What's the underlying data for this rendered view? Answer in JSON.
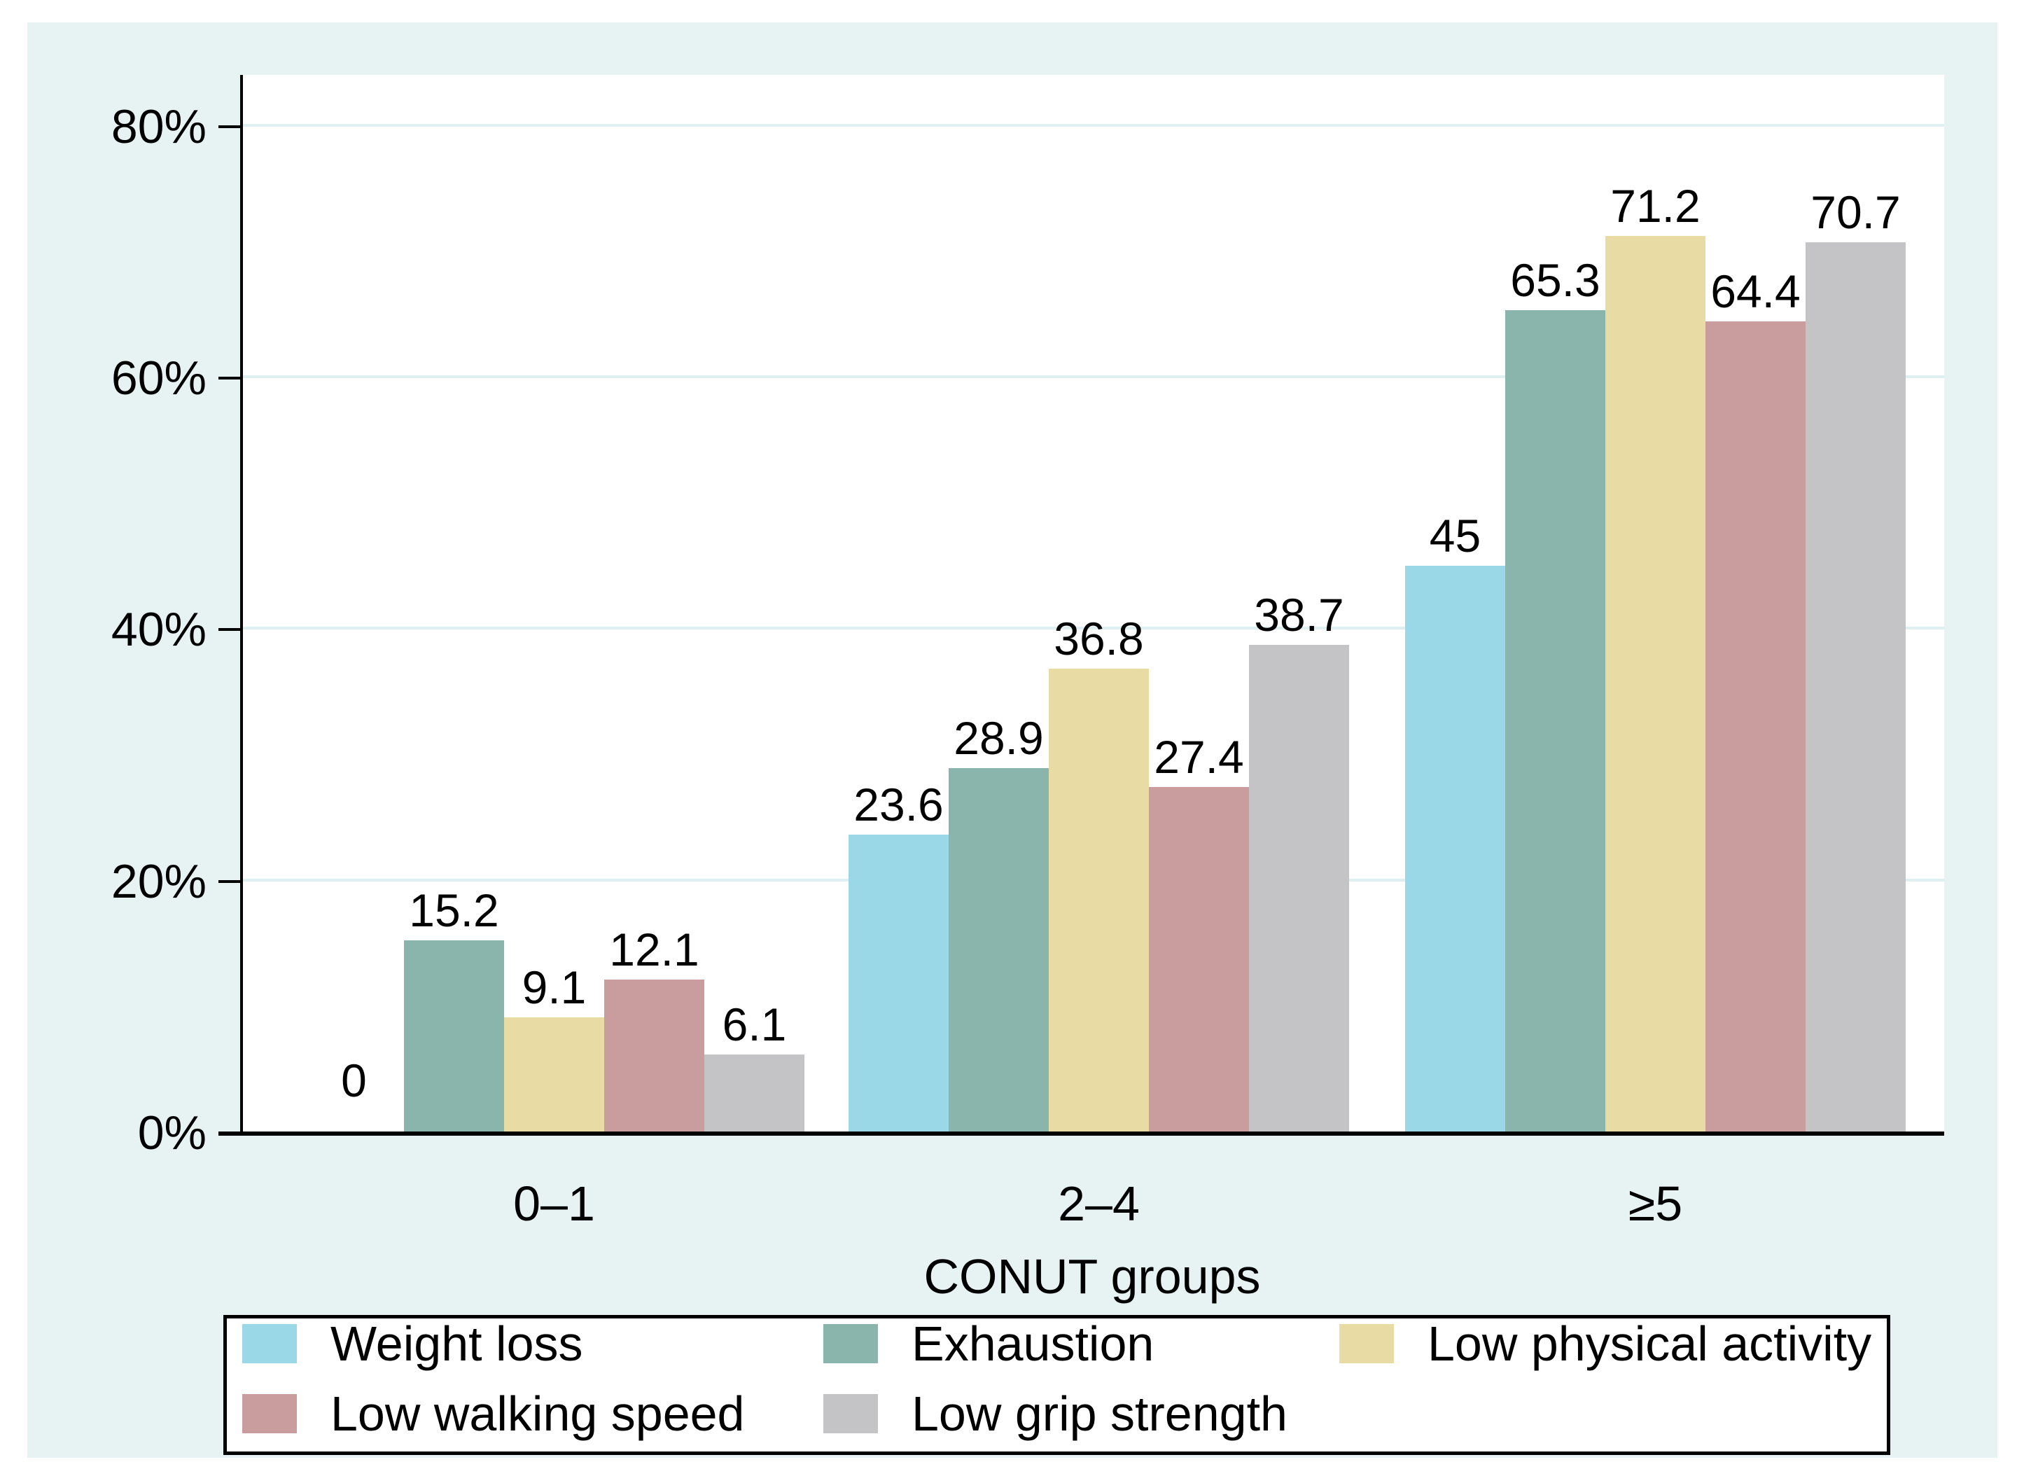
{
  "chart_data": {
    "type": "bar",
    "title": "",
    "xlabel": "CONUT groups",
    "ylabel": "",
    "categories": [
      "0–1",
      "2–4",
      "≥5"
    ],
    "y_ticks": [
      "0%",
      "20%",
      "40%",
      "60%",
      "80%"
    ],
    "y_tick_values": [
      0,
      20,
      40,
      60,
      80
    ],
    "ylim": [
      0,
      84
    ],
    "grid": true,
    "legend_position": "bottom",
    "series": [
      {
        "name": "Weight loss",
        "color": "#9ad8e8",
        "values": [
          0,
          23.6,
          45.0
        ]
      },
      {
        "name": "Exhaustion",
        "color": "#8ab5ad",
        "values": [
          15.2,
          28.9,
          65.3
        ]
      },
      {
        "name": "Low physical activity",
        "color": "#e9dba4",
        "values": [
          9.1,
          36.8,
          71.2
        ]
      },
      {
        "name": "Low walking speed",
        "color": "#c99d9d",
        "values": [
          12.1,
          27.4,
          64.4
        ]
      },
      {
        "name": "Low grip strength",
        "color": "#c4c4c6",
        "values": [
          6.1,
          38.7,
          70.7
        ]
      }
    ],
    "bar_labels": [
      [
        "0",
        "23.6",
        "45"
      ],
      [
        "15.2",
        "28.9",
        "65.3"
      ],
      [
        "9.1",
        "36.8",
        "71.2"
      ],
      [
        "12.1",
        "27.4",
        "64.4"
      ],
      [
        "6.1",
        "38.7",
        "70.7"
      ]
    ]
  },
  "colors": {
    "background": "#e7f2f3",
    "plot_background": "#ffffff",
    "gridline": "#dff0f2",
    "axis": "#000000",
    "text": "#000000",
    "legend_border": "#000000"
  }
}
